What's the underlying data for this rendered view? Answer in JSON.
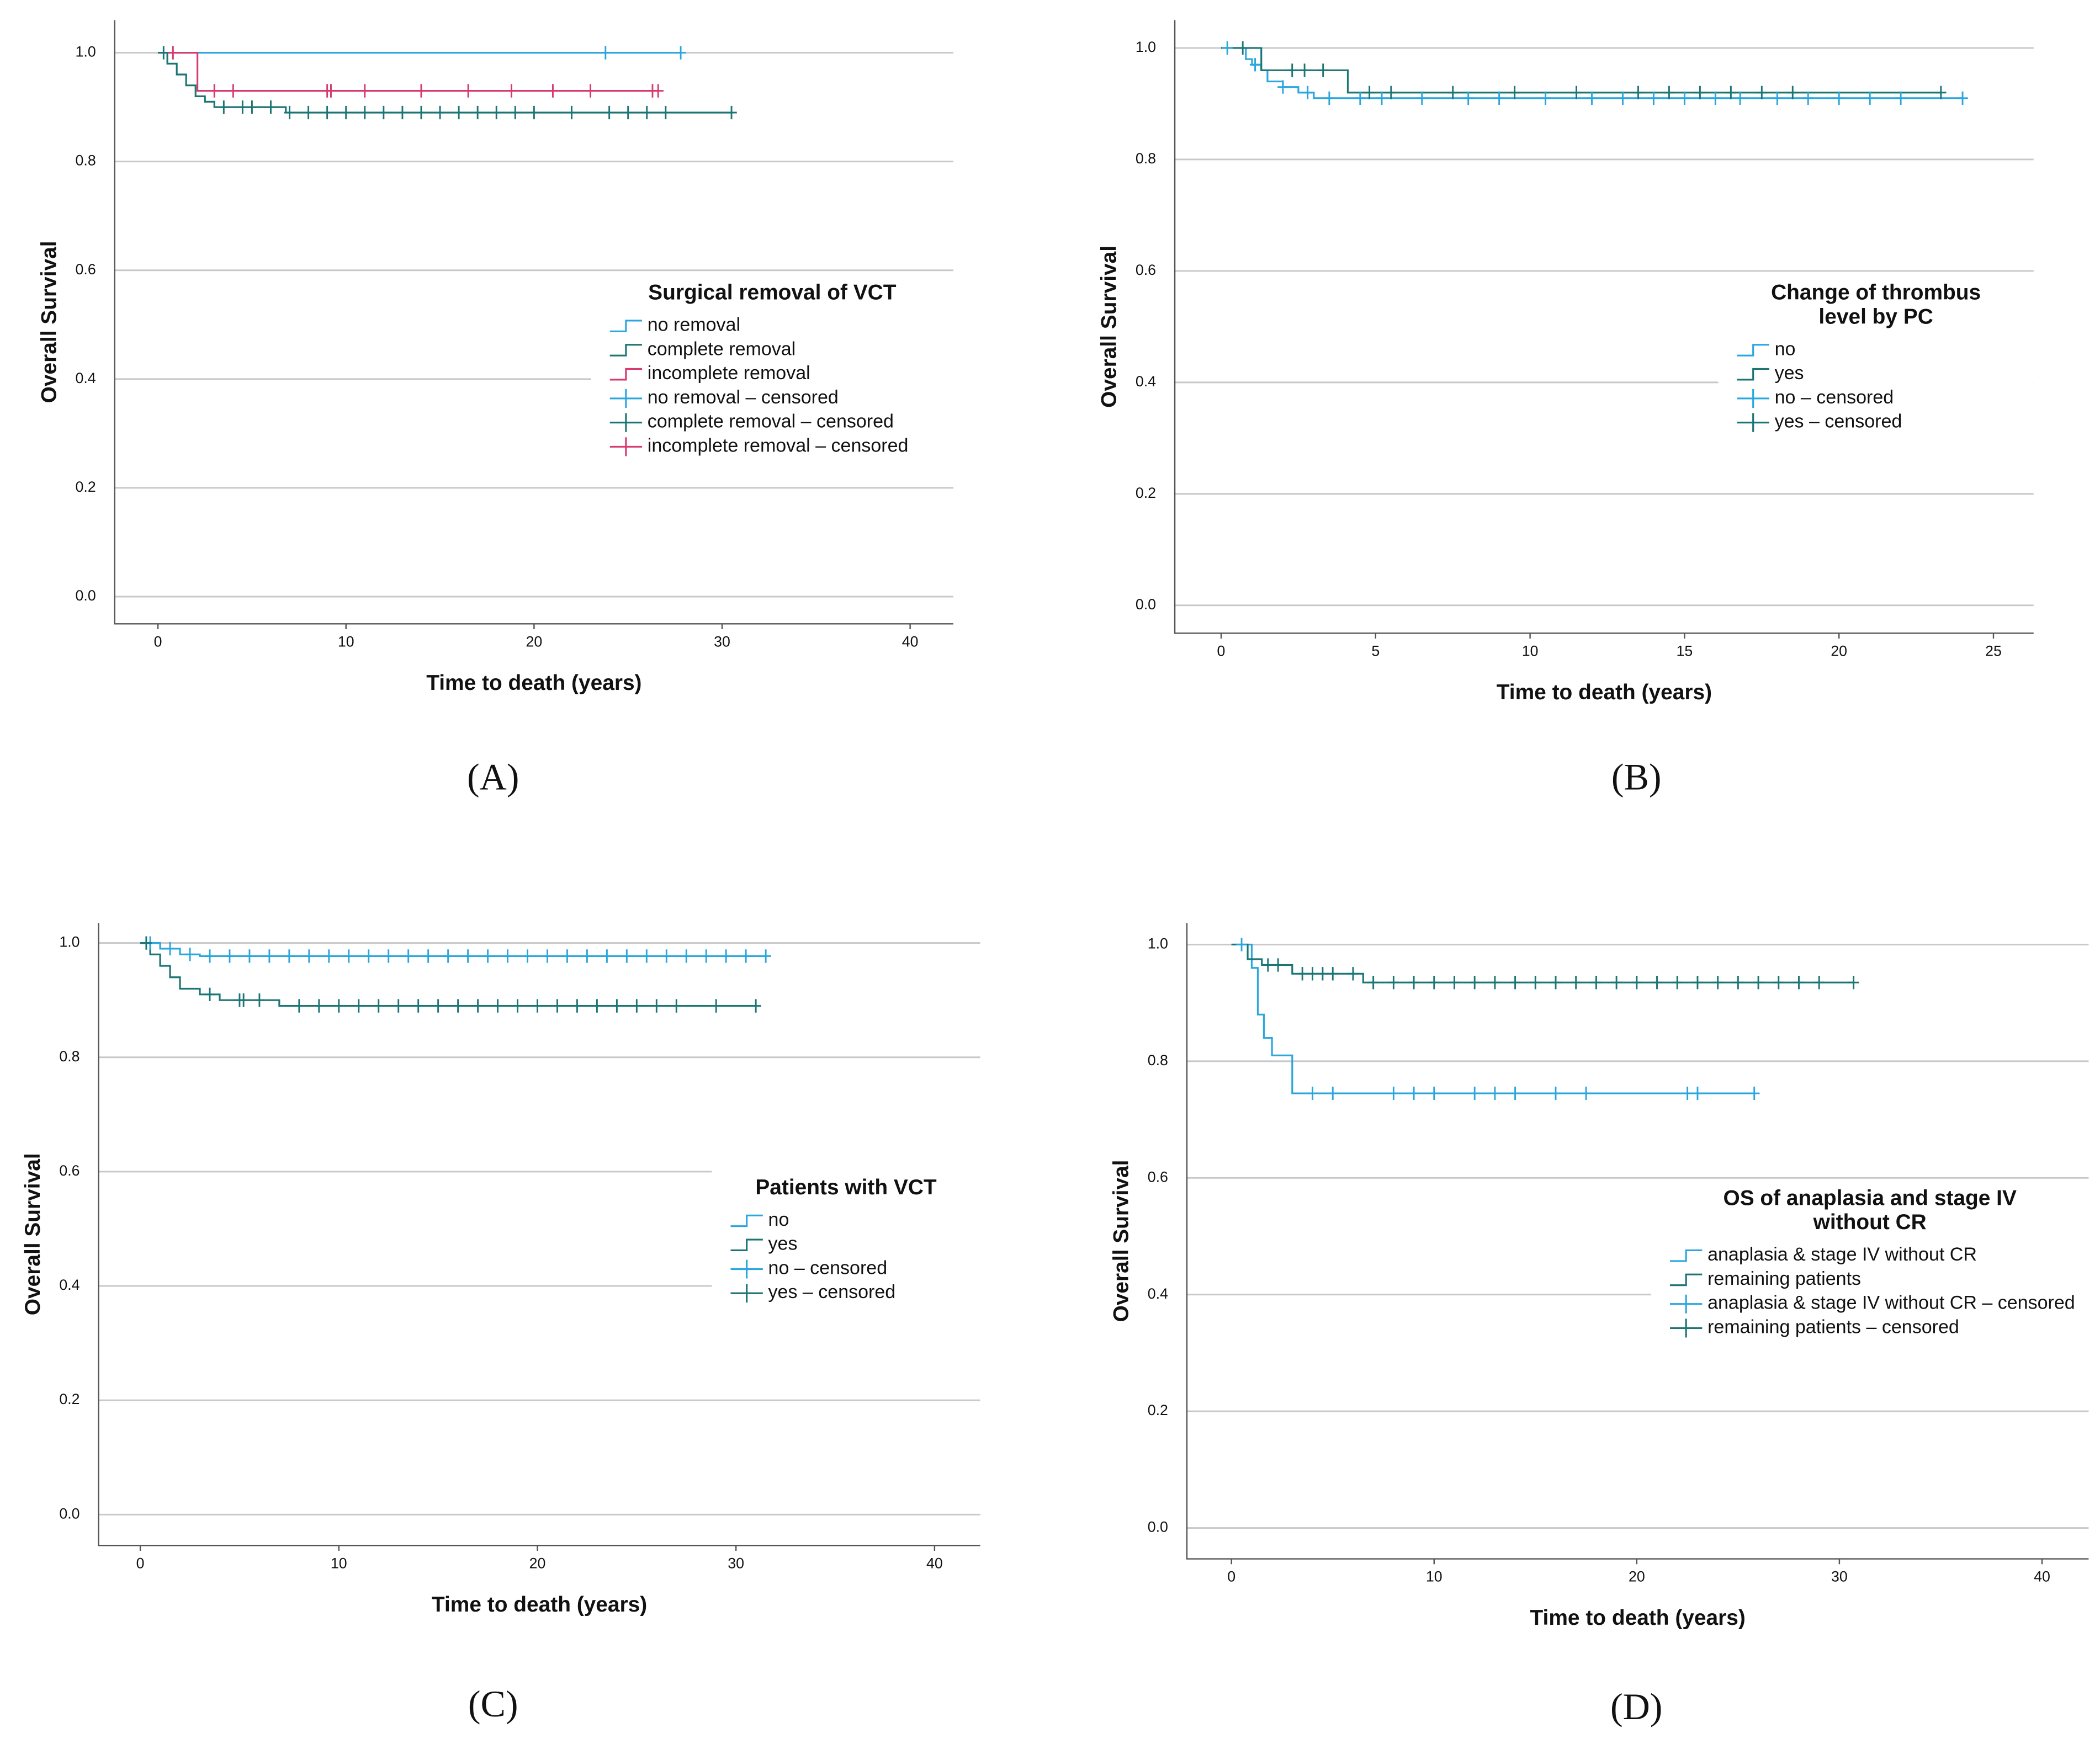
{
  "chart_data": [
    {
      "type": "step",
      "label": "(A)",
      "x_label": "Time to death (years)",
      "y_label": "Overall Survival",
      "legend_title": [
        "Surgical removal of VCT"
      ],
      "legend": "right",
      "xlim": [
        -2.3,
        42.3
      ],
      "ylim": [
        -0.05,
        1.06
      ],
      "xticks": [
        0,
        10,
        20,
        30,
        40
      ],
      "yticks": [
        {
          "value": 0,
          "label": "0.0"
        },
        0.2,
        0.4,
        0.6,
        0.8,
        {
          "value": 1,
          "label": "1.0"
        }
      ],
      "grid": true,
      "series": [
        {
          "name": "no removal",
          "style": "step",
          "color": "#2aa6df",
          "x": [
            0,
            27.8
          ],
          "values": [
            1,
            1
          ]
        },
        {
          "name": "complete removal",
          "style": "step",
          "color": "#1b7574",
          "x": [
            0,
            0.5,
            1,
            1.5,
            2,
            2.5,
            3,
            6.8,
            30.5
          ],
          "values": [
            1,
            0.98,
            0.96,
            0.94,
            0.92,
            0.91,
            0.9,
            0.89,
            0.89
          ]
        },
        {
          "name": "incomplete removal",
          "style": "step",
          "color": "#d8396e",
          "x": [
            0.8,
            2.1,
            26.6
          ],
          "values": [
            1,
            0.93,
            0.93
          ]
        },
        {
          "name": "no removal – censored",
          "style": "censored",
          "color": "#2aa6df",
          "x": [
            23.8,
            27.8
          ],
          "values": [
            1,
            1
          ]
        },
        {
          "name": "complete removal – censored",
          "style": "censored",
          "color": "#1b7574",
          "x": [
            0.3,
            3.5,
            4.5,
            5,
            6,
            7,
            8,
            9,
            10,
            11,
            12,
            13,
            14,
            15,
            16,
            17,
            18,
            19,
            20,
            22,
            24,
            25,
            26,
            27,
            30.5
          ],
          "values": [
            1,
            0.9,
            0.9,
            0.9,
            0.9,
            0.89,
            0.89,
            0.89,
            0.89,
            0.89,
            0.89,
            0.89,
            0.89,
            0.89,
            0.89,
            0.89,
            0.89,
            0.89,
            0.89,
            0.89,
            0.89,
            0.89,
            0.89,
            0.89,
            0.89
          ]
        },
        {
          "name": "incomplete removal – censored",
          "style": "censored",
          "color": "#d8396e",
          "x": [
            0.8,
            3,
            4,
            9,
            9.2,
            11,
            14,
            16.5,
            18.8,
            21,
            23,
            26.3,
            26.6
          ],
          "values": [
            1,
            0.93,
            0.93,
            0.93,
            0.93,
            0.93,
            0.93,
            0.93,
            0.93,
            0.93,
            0.93,
            0.93,
            0.93
          ]
        }
      ]
    },
    {
      "type": "step",
      "label": "(B)",
      "x_label": "Time to death (years)",
      "y_label": "Overall Survival",
      "legend_title": [
        "Change of thrombus",
        "level by PC"
      ],
      "legend": "right",
      "xlim": [
        -1.5,
        26.3
      ],
      "ylim": [
        -0.05,
        1.05
      ],
      "xticks": [
        0,
        5,
        10,
        15,
        20,
        25
      ],
      "yticks": [
        {
          "value": 0,
          "label": "0.0"
        },
        0.2,
        0.4,
        0.6,
        0.8,
        {
          "value": 1,
          "label": "1.0"
        }
      ],
      "grid": true,
      "series": [
        {
          "name": "no",
          "style": "step",
          "color": "#2aa6df",
          "x": [
            0,
            0.8,
            1,
            1.3,
            1.5,
            2,
            2.5,
            3,
            24
          ],
          "values": [
            1,
            0.98,
            0.97,
            0.96,
            0.94,
            0.93,
            0.92,
            0.91,
            0.91
          ]
        },
        {
          "name": "yes",
          "style": "step",
          "color": "#1b7574",
          "x": [
            0,
            1.3,
            4.1,
            23.3
          ],
          "values": [
            1,
            0.96,
            0.92,
            0.92
          ]
        },
        {
          "name": "no – censored",
          "style": "censored",
          "color": "#2aa6df",
          "x": [
            0.2,
            1.1,
            2,
            2.8,
            3.5,
            4.5,
            5.2,
            6.5,
            8,
            9,
            10.5,
            12,
            13,
            14,
            15,
            16,
            16.8,
            18,
            19,
            20,
            21,
            22,
            24
          ],
          "values": [
            1,
            0.97,
            0.93,
            0.92,
            0.91,
            0.91,
            0.91,
            0.91,
            0.91,
            0.91,
            0.91,
            0.91,
            0.91,
            0.91,
            0.91,
            0.91,
            0.91,
            0.91,
            0.91,
            0.91,
            0.91,
            0.91,
            0.91
          ]
        },
        {
          "name": "yes – censored",
          "style": "censored",
          "color": "#1b7574",
          "x": [
            0.7,
            2.3,
            2.7,
            3.3,
            4.8,
            5.5,
            7.5,
            9.5,
            11.5,
            13.5,
            14.5,
            15.5,
            16.5,
            17.5,
            18.5,
            23.3
          ],
          "values": [
            1,
            0.96,
            0.96,
            0.96,
            0.92,
            0.92,
            0.92,
            0.92,
            0.92,
            0.92,
            0.92,
            0.92,
            0.92,
            0.92,
            0.92,
            0.92
          ]
        }
      ]
    },
    {
      "type": "step",
      "label": "(C)",
      "x_label": "Time to death (years)",
      "y_label": "Overall Survival",
      "legend_title": [
        "Patients with VCT"
      ],
      "legend": "right",
      "xlim": [
        -2.1,
        42.3
      ],
      "ylim": [
        -0.054,
        1.035
      ],
      "xticks": [
        0,
        10,
        20,
        30,
        40
      ],
      "yticks": [
        {
          "value": 0,
          "label": "0.0"
        },
        0.2,
        0.4,
        0.6,
        0.8,
        {
          "value": 1,
          "label": "1.0"
        }
      ],
      "grid": true,
      "series": [
        {
          "name": "no",
          "style": "step",
          "color": "#2aa6df",
          "x": [
            0,
            1,
            2,
            3,
            31.5
          ],
          "values": [
            1,
            0.99,
            0.98,
            0.977,
            0.977
          ]
        },
        {
          "name": "yes",
          "style": "step",
          "color": "#1b7574",
          "x": [
            0,
            0.5,
            1,
            1.5,
            2,
            3,
            4,
            7,
            31
          ],
          "values": [
            1,
            0.98,
            0.96,
            0.94,
            0.92,
            0.91,
            0.9,
            0.89,
            0.89
          ]
        },
        {
          "name": "no – censored",
          "style": "censored",
          "color": "#2aa6df",
          "x": [
            0.5,
            1.5,
            2.5,
            3.5,
            4.5,
            5.5,
            6.5,
            7.5,
            8.5,
            9.5,
            10.5,
            11.5,
            12.5,
            13.5,
            14.5,
            15.5,
            16.5,
            17.5,
            18.5,
            19.5,
            20.5,
            21.5,
            22.5,
            23.5,
            24.5,
            25.5,
            26.5,
            27.5,
            28.5,
            29.5,
            30.5,
            31.5
          ],
          "values": [
            1,
            0.99,
            0.98,
            0.977,
            0.977,
            0.977,
            0.977,
            0.977,
            0.977,
            0.977,
            0.977,
            0.977,
            0.977,
            0.977,
            0.977,
            0.977,
            0.977,
            0.977,
            0.977,
            0.977,
            0.977,
            0.977,
            0.977,
            0.977,
            0.977,
            0.977,
            0.977,
            0.977,
            0.977,
            0.977,
            0.977,
            0.977
          ]
        },
        {
          "name": "yes – censored",
          "style": "censored",
          "color": "#1b7574",
          "x": [
            0.3,
            3.5,
            5,
            5.2,
            6,
            8,
            9,
            10,
            11,
            12,
            13,
            14,
            15,
            16,
            17,
            18,
            19,
            20,
            21,
            22,
            23,
            24,
            25,
            26,
            27,
            29,
            31
          ],
          "values": [
            1,
            0.91,
            0.9,
            0.9,
            0.9,
            0.89,
            0.89,
            0.89,
            0.89,
            0.89,
            0.89,
            0.89,
            0.89,
            0.89,
            0.89,
            0.89,
            0.89,
            0.89,
            0.89,
            0.89,
            0.89,
            0.89,
            0.89,
            0.89,
            0.89,
            0.89,
            0.89
          ]
        }
      ]
    },
    {
      "type": "step",
      "label": "(D)",
      "x_label": "Time to death (years)",
      "y_label": "Overall Survival",
      "legend_title": [
        "OS of anaplasia and stage IV",
        "without CR"
      ],
      "legend": "right",
      "xlim": [
        -2.2,
        42.3
      ],
      "ylim": [
        -0.053,
        1.037
      ],
      "xticks": [
        0,
        10,
        20,
        30,
        40
      ],
      "yticks": [
        {
          "value": 0,
          "label": "0.0"
        },
        0.2,
        0.4,
        0.6,
        0.8,
        {
          "value": 1,
          "label": "1.0"
        }
      ],
      "grid": true,
      "series": [
        {
          "name": "anaplasia & stage IV without CR",
          "style": "step",
          "color": "#2aa6df",
          "x": [
            0,
            1,
            1.3,
            1.6,
            2,
            3,
            25.8
          ],
          "values": [
            1,
            0.96,
            0.88,
            0.84,
            0.81,
            0.745,
            0.745
          ]
        },
        {
          "name": "remaining patients",
          "style": "step",
          "color": "#1b7574",
          "x": [
            0,
            0.8,
            1.5,
            3,
            6.5,
            30.7
          ],
          "values": [
            1,
            0.975,
            0.965,
            0.95,
            0.935,
            0.935
          ]
        },
        {
          "name": "anaplasia & stage IV without CR – censored",
          "style": "censored",
          "color": "#2aa6df",
          "x": [
            0.5,
            4,
            5,
            8,
            9,
            10,
            12,
            13,
            14,
            16,
            17.5,
            22.5,
            23,
            25.8
          ],
          "values": [
            1,
            0.745,
            0.745,
            0.745,
            0.745,
            0.745,
            0.745,
            0.745,
            0.745,
            0.745,
            0.745,
            0.745,
            0.745,
            0.745
          ]
        },
        {
          "name": "remaining patients – censored",
          "style": "censored",
          "color": "#1b7574",
          "x": [
            1.8,
            2.3,
            3.5,
            4,
            4.5,
            5,
            6,
            7,
            8,
            9,
            10,
            11,
            12,
            13,
            14,
            15,
            16,
            17,
            18,
            19,
            20,
            21,
            22,
            23,
            24,
            25,
            26,
            27,
            28,
            29,
            30.7
          ],
          "values": [
            0.965,
            0.965,
            0.95,
            0.95,
            0.95,
            0.95,
            0.95,
            0.935,
            0.935,
            0.935,
            0.935,
            0.935,
            0.935,
            0.935,
            0.935,
            0.935,
            0.935,
            0.935,
            0.935,
            0.935,
            0.935,
            0.935,
            0.935,
            0.935,
            0.935,
            0.935,
            0.935,
            0.935,
            0.935,
            0.935,
            0.935
          ]
        }
      ]
    }
  ]
}
